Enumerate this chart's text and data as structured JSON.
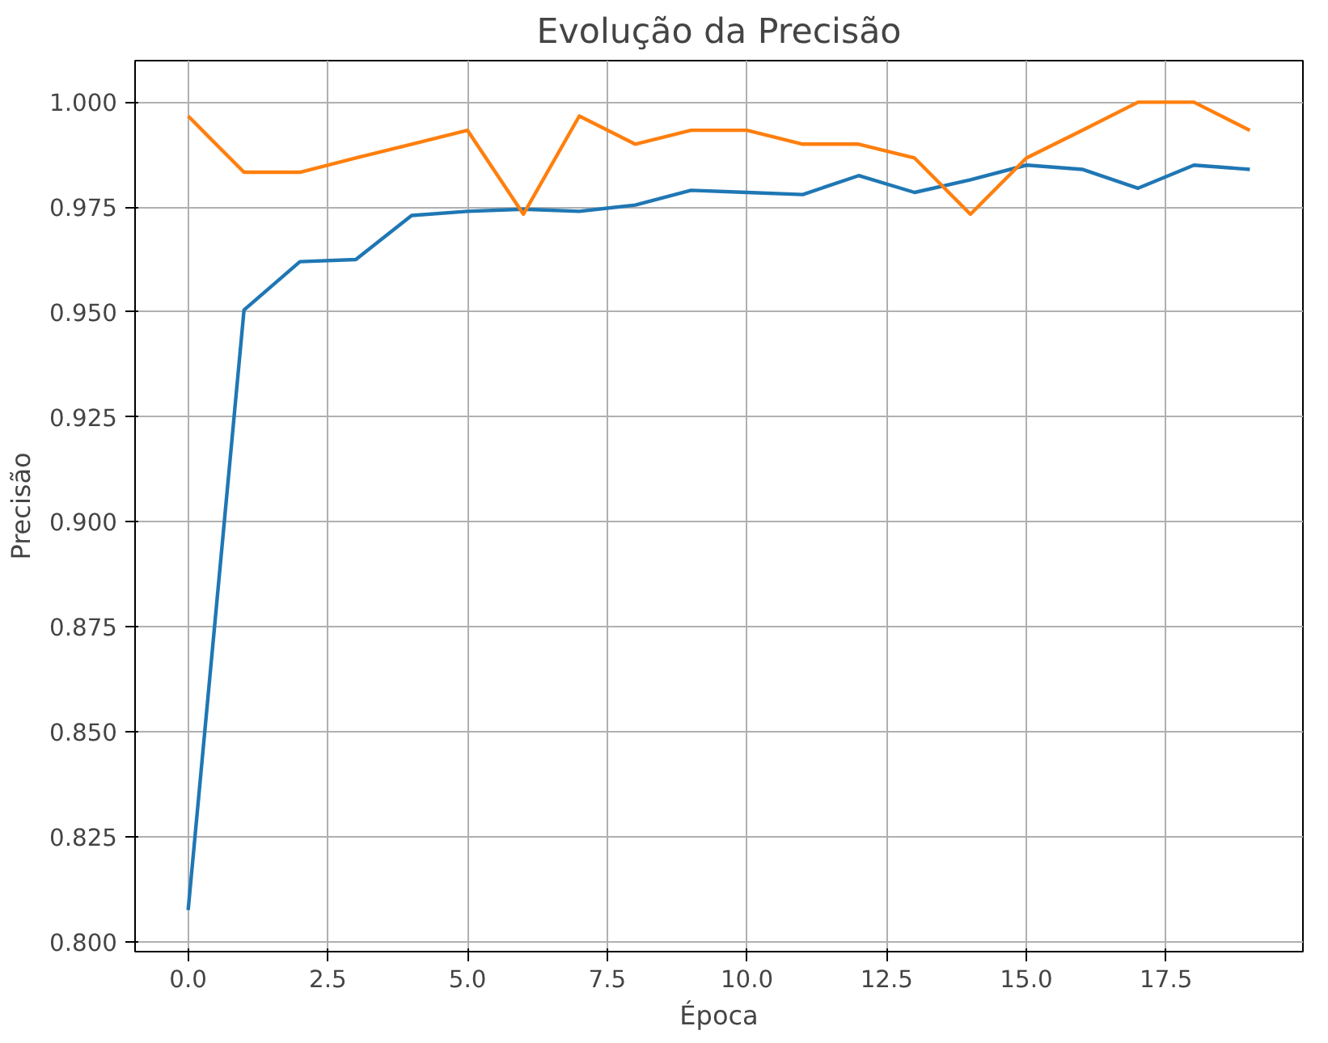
{
  "chart_data": {
    "type": "line",
    "title": "Evolução da Precisão",
    "xlabel": "Época",
    "ylabel": "Precisão",
    "x": [
      0,
      1,
      2,
      3,
      4,
      5,
      6,
      7,
      8,
      9,
      10,
      11,
      12,
      13,
      14,
      15,
      16,
      17,
      18,
      19
    ],
    "series": [
      {
        "color": "#1f77b4",
        "values": [
          0.8075,
          0.9505,
          0.962,
          0.9625,
          0.973,
          0.974,
          0.9745,
          0.974,
          0.9755,
          0.979,
          0.9785,
          0.978,
          0.9825,
          0.9785,
          0.9815,
          0.985,
          0.984,
          0.9795,
          0.985,
          0.984
        ]
      },
      {
        "color": "#ff7f0e",
        "values": [
          0.9967,
          0.9833,
          0.9833,
          0.9867,
          0.99,
          0.9933,
          0.9733,
          0.9967,
          0.99,
          0.9933,
          0.9933,
          0.99,
          0.99,
          0.9867,
          0.9733,
          0.9867,
          0.9933,
          1.0,
          1.0,
          0.9933
        ]
      }
    ],
    "xlim": [
      -0.95,
      19.95
    ],
    "ylim": [
      0.7976,
      1.0099
    ],
    "xticks": [
      {
        "value": 0,
        "label": "0.0"
      },
      {
        "value": 2.5,
        "label": "2.5"
      },
      {
        "value": 5,
        "label": "5.0"
      },
      {
        "value": 7.5,
        "label": "7.5"
      },
      {
        "value": 10,
        "label": "10.0"
      },
      {
        "value": 12.5,
        "label": "12.5"
      },
      {
        "value": 15,
        "label": "15.0"
      },
      {
        "value": 17.5,
        "label": "17.5"
      }
    ],
    "yticks": [
      {
        "value": 0.8,
        "label": "0.800"
      },
      {
        "value": 0.825,
        "label": "0.825"
      },
      {
        "value": 0.85,
        "label": "0.850"
      },
      {
        "value": 0.875,
        "label": "0.875"
      },
      {
        "value": 0.9,
        "label": "0.900"
      },
      {
        "value": 0.925,
        "label": "0.925"
      },
      {
        "value": 0.95,
        "label": "0.950"
      },
      {
        "value": 0.975,
        "label": "0.975"
      },
      {
        "value": 1.0,
        "label": "1.000"
      }
    ],
    "grid": true,
    "marker": "none",
    "line_style": "solid"
  }
}
